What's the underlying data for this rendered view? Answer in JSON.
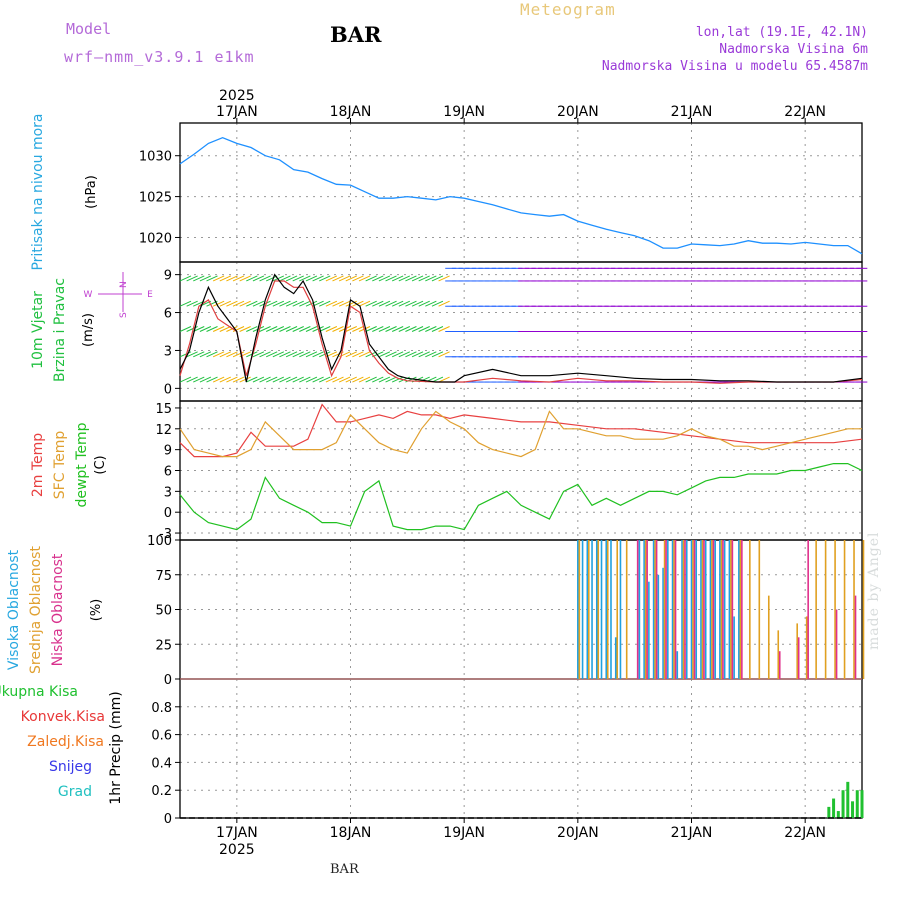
{
  "header": {
    "model_label": "Model",
    "model_name": "wrf—nmm_v3.9.1  e1km",
    "station": "BAR",
    "title": "Meteogram",
    "lonlat": "lon,lat (19.1E, 42.1N)",
    "altitude": "Nadmorska Visina 6m",
    "model_altitude": "Nadmorska Visina u modelu 65.4587m"
  },
  "footer_station": "BAR",
  "credit": "made by Angel",
  "time_axis": {
    "year": "2025",
    "ticks": [
      "17JAN",
      "18JAN",
      "19JAN",
      "20JAN",
      "21JAN",
      "22JAN"
    ],
    "start_hour": 0,
    "end_hour": 144
  },
  "chart_data": [
    {
      "type": "line",
      "panel": "pressure",
      "ylabel_title": "Pritisak na nivou mora",
      "unit": "(hPa)",
      "ylim": [
        1017,
        1034
      ],
      "yticks": [
        1020,
        1025,
        1030
      ],
      "grid": true,
      "colors": {
        "line": "#1e90ff",
        "title": "#28a8e0"
      },
      "series": [
        {
          "x": [
            0,
            3,
            6,
            9,
            12,
            15,
            18,
            21,
            24,
            27,
            30,
            33,
            36,
            39,
            42,
            45,
            48,
            51,
            54,
            57,
            60,
            63,
            66,
            69,
            72,
            75,
            78,
            81,
            84,
            87,
            90,
            93,
            96,
            99,
            102,
            105,
            108,
            111,
            114,
            117,
            120,
            123,
            126,
            129,
            132,
            135,
            138,
            141,
            144
          ],
          "y": [
            1029,
            1030.2,
            1031.5,
            1032.2,
            1031.5,
            1031,
            1030,
            1029.5,
            1028.3,
            1028,
            1027.2,
            1026.5,
            1026.4,
            1025.6,
            1024.8,
            1024.8,
            1025,
            1024.8,
            1024.6,
            1025,
            1024.8,
            1024.4,
            1024,
            1023.5,
            1023,
            1022.8,
            1022.6,
            1022.8,
            1022,
            1021.5,
            1021,
            1020.6,
            1020.2,
            1019.6,
            1018.7,
            1018.7,
            1019.2,
            1019.1,
            1019,
            1019.2,
            1019.6,
            1019.3,
            1019.3,
            1019.2,
            1019.4,
            1019.2,
            1019,
            1019,
            1018
          ]
        }
      ]
    },
    {
      "type": "line",
      "panel": "wind",
      "ylabel_title": "10m Vjetar",
      "ylabel_sub": "Brzina i Pravac",
      "unit": "(m/s)",
      "compass": [
        "N",
        "E",
        "S",
        "W"
      ],
      "ylim": [
        -1,
        10
      ],
      "yticks": [
        0,
        3,
        6,
        9
      ],
      "grid": true,
      "colors": {
        "speed": "#000000",
        "gust": "#e04040",
        "barb_low": "#2060ff",
        "barb_mid": "#20c040",
        "barb_high": "#f0b000",
        "barb_calm": "#9000d0",
        "title": "#20c040"
      },
      "series": [
        {
          "name": "speed",
          "x": [
            0,
            2,
            4,
            6,
            8,
            10,
            12,
            14,
            16,
            18,
            20,
            22,
            24,
            26,
            28,
            30,
            32,
            34,
            36,
            38,
            40,
            42,
            44,
            46,
            48,
            50,
            52,
            54,
            56,
            58,
            60,
            66,
            72,
            78,
            84,
            90,
            96,
            102,
            108,
            114,
            120,
            126,
            132,
            138,
            144
          ],
          "y": [
            1.5,
            3,
            6,
            8,
            6.5,
            5.5,
            4.5,
            0.5,
            4,
            7,
            9,
            8,
            7.5,
            8.5,
            7,
            4,
            1.5,
            3,
            7,
            6.5,
            3.5,
            2.5,
            1.5,
            1,
            0.8,
            0.7,
            0.6,
            0.5,
            0.5,
            0.5,
            1,
            1.5,
            1,
            1,
            1.2,
            1,
            0.8,
            0.7,
            0.7,
            0.6,
            0.6,
            0.5,
            0.5,
            0.5,
            0.8
          ]
        },
        {
          "name": "gust",
          "x": [
            0,
            2,
            4,
            6,
            8,
            10,
            12,
            14,
            16,
            18,
            20,
            22,
            24,
            26,
            28,
            30,
            32,
            34,
            36,
            38,
            40,
            42,
            44,
            46,
            48,
            54,
            60,
            66,
            72,
            78,
            84,
            90,
            96,
            102,
            108,
            114,
            120,
            126,
            132,
            138,
            144
          ],
          "y": [
            1,
            3.5,
            6.5,
            7,
            5.5,
            5,
            4.5,
            1,
            3.5,
            6.5,
            8.5,
            8.5,
            8,
            8,
            6.5,
            3.5,
            1,
            2.5,
            6.5,
            6,
            3,
            2,
            1.2,
            0.8,
            0.6,
            0.5,
            0.5,
            0.8,
            0.6,
            0.5,
            0.8,
            0.6,
            0.6,
            0.5,
            0.5,
            0.4,
            0.5,
            0.5,
            0.5,
            0.5,
            0.7
          ]
        }
      ]
    },
    {
      "type": "line",
      "panel": "temperature",
      "ylabel_titles": [
        "2m Temp",
        "SFC Temp",
        "dewpt Temp"
      ],
      "unit": "(C)",
      "ylim": [
        -4,
        16
      ],
      "yticks": [
        -3,
        0,
        3,
        6,
        9,
        12,
        15
      ],
      "grid": true,
      "colors": {
        "t2m": "#e84040",
        "tsfc": "#e0a030",
        "dew": "#20c020"
      },
      "series": [
        {
          "name": "2m Temp",
          "x": [
            0,
            3,
            6,
            9,
            12,
            15,
            18,
            21,
            24,
            27,
            30,
            33,
            36,
            39,
            42,
            45,
            48,
            51,
            54,
            57,
            60,
            66,
            72,
            78,
            84,
            90,
            96,
            102,
            108,
            114,
            120,
            126,
            132,
            138,
            144
          ],
          "y": [
            10,
            8,
            8,
            8,
            8.5,
            11.5,
            9.5,
            9.5,
            9.5,
            10.5,
            15.5,
            13,
            13,
            13.5,
            14,
            13.5,
            14.5,
            14,
            14,
            13.5,
            14,
            13.5,
            13,
            13,
            12.5,
            12,
            12,
            11.5,
            11,
            10.5,
            10,
            10,
            10,
            10,
            10.5
          ]
        },
        {
          "name": "SFC Temp",
          "x": [
            0,
            3,
            6,
            9,
            12,
            15,
            18,
            21,
            24,
            27,
            30,
            33,
            36,
            39,
            42,
            45,
            48,
            51,
            54,
            57,
            60,
            63,
            66,
            69,
            72,
            75,
            78,
            81,
            84,
            87,
            90,
            93,
            96,
            99,
            102,
            105,
            108,
            111,
            114,
            117,
            120,
            123,
            126,
            129,
            132,
            135,
            138,
            141,
            144
          ],
          "y": [
            12,
            9,
            8.5,
            8,
            8,
            9,
            13,
            11,
            9,
            9,
            9,
            10,
            14,
            12,
            10,
            9,
            8.5,
            12,
            14.5,
            13,
            12,
            10,
            9,
            8.5,
            8,
            9,
            14.5,
            12,
            12,
            11.5,
            11,
            11,
            10.5,
            10.5,
            10.5,
            11,
            12,
            11,
            10.5,
            9.5,
            9.5,
            9,
            9.5,
            10,
            10.5,
            11,
            11.5,
            12,
            12
          ]
        },
        {
          "name": "dewpt Temp",
          "x": [
            0,
            3,
            6,
            9,
            12,
            15,
            18,
            21,
            24,
            27,
            30,
            33,
            36,
            39,
            42,
            45,
            48,
            51,
            54,
            57,
            60,
            63,
            66,
            69,
            72,
            75,
            78,
            81,
            84,
            87,
            90,
            93,
            96,
            99,
            102,
            105,
            108,
            111,
            114,
            117,
            120,
            123,
            126,
            129,
            132,
            135,
            138,
            141,
            144
          ],
          "y": [
            2.5,
            0,
            -1.5,
            -2,
            -2.5,
            -1,
            5,
            2,
            1,
            0,
            -1.5,
            -1.5,
            -2,
            3,
            4.5,
            -2,
            -2.5,
            -2.5,
            -2,
            -2,
            -2.5,
            1,
            2,
            3,
            1,
            0,
            -1,
            3,
            4,
            1,
            2,
            1,
            2,
            3,
            3,
            2.5,
            3.5,
            4.5,
            5,
            5,
            5.5,
            5.5,
            5.5,
            6,
            6,
            6.5,
            7,
            7,
            6
          ]
        }
      ]
    },
    {
      "type": "bar",
      "panel": "cloud",
      "ylabel_titles": [
        "Visoka Oblacnost",
        "Srednja Oblacnost",
        "Niska  Oblacnost"
      ],
      "unit": "(%)",
      "ylim": [
        0,
        100
      ],
      "yticks": [
        0,
        25,
        50,
        75,
        100
      ],
      "grid": true,
      "colors": {
        "high": "#20a0e0",
        "mid": "#e0a020",
        "low": "#e0308c",
        "title_high": "#28a8e0",
        "title_mid": "#e0a030",
        "title_low": "#d8308c"
      },
      "series": [
        {
          "name": "Visoka Oblacnost",
          "x": [
            84,
            85,
            86,
            87,
            88,
            89,
            90,
            91,
            92,
            93,
            94,
            97,
            98,
            99,
            100,
            101,
            102,
            103,
            104,
            105,
            106,
            107,
            108,
            109,
            110,
            111,
            112,
            113,
            114,
            115,
            116,
            117,
            118,
            119,
            120
          ],
          "values": [
            100,
            100,
            100,
            100,
            100,
            100,
            100,
            100,
            30,
            100,
            0,
            100,
            100,
            70,
            100,
            75,
            80,
            100,
            100,
            20,
            100,
            100,
            100,
            100,
            100,
            100,
            100,
            100,
            100,
            100,
            100,
            45,
            100,
            0,
            0
          ]
        },
        {
          "name": "Srednja Oblacnost",
          "x": [
            84,
            86,
            88,
            90,
            92,
            94,
            96,
            98,
            100,
            102,
            104,
            106,
            108,
            110,
            112,
            114,
            116,
            118,
            120,
            122,
            124,
            126,
            128,
            130,
            132,
            134,
            136,
            138,
            140,
            142,
            144
          ],
          "values": [
            100,
            100,
            100,
            100,
            100,
            100,
            0,
            100,
            100,
            100,
            100,
            100,
            100,
            100,
            100,
            100,
            100,
            100,
            100,
            100,
            60,
            35,
            0,
            40,
            45,
            100,
            100,
            100,
            100,
            100,
            100
          ]
        },
        {
          "name": "Niska  Oblacnost",
          "x": [
            96,
            98,
            100,
            102,
            104,
            106,
            108,
            110,
            112,
            114,
            116,
            118,
            126,
            130,
            132,
            138,
            142
          ],
          "values": [
            100,
            100,
            100,
            100,
            100,
            100,
            100,
            100,
            100,
            100,
            100,
            100,
            20,
            30,
            100,
            50,
            60
          ]
        }
      ]
    },
    {
      "type": "bar",
      "panel": "precip",
      "ylabel_title": "1hr Precip (mm)",
      "legend": [
        {
          "name": "Ukupna  Kisa",
          "color": "#20c030"
        },
        {
          "name": "Konvek.Kisa",
          "color": "#e83838"
        },
        {
          "name": "Zaledj.Kisa",
          "color": "#f07820"
        },
        {
          "name": "Snijeg",
          "color": "#3838e8"
        },
        {
          "name": "Grad",
          "color": "#20c0c0"
        }
      ],
      "ylim": [
        0,
        1
      ],
      "yticks": [
        0,
        0.2,
        0.4,
        0.6,
        0.8
      ],
      "grid": true,
      "series": [
        {
          "name": "Ukupna  Kisa",
          "x": [
            137,
            138,
            139,
            140,
            141,
            142,
            143,
            144
          ],
          "values": [
            0.08,
            0.14,
            0.05,
            0.2,
            0.26,
            0.12,
            0.2,
            0.2
          ]
        }
      ]
    }
  ]
}
